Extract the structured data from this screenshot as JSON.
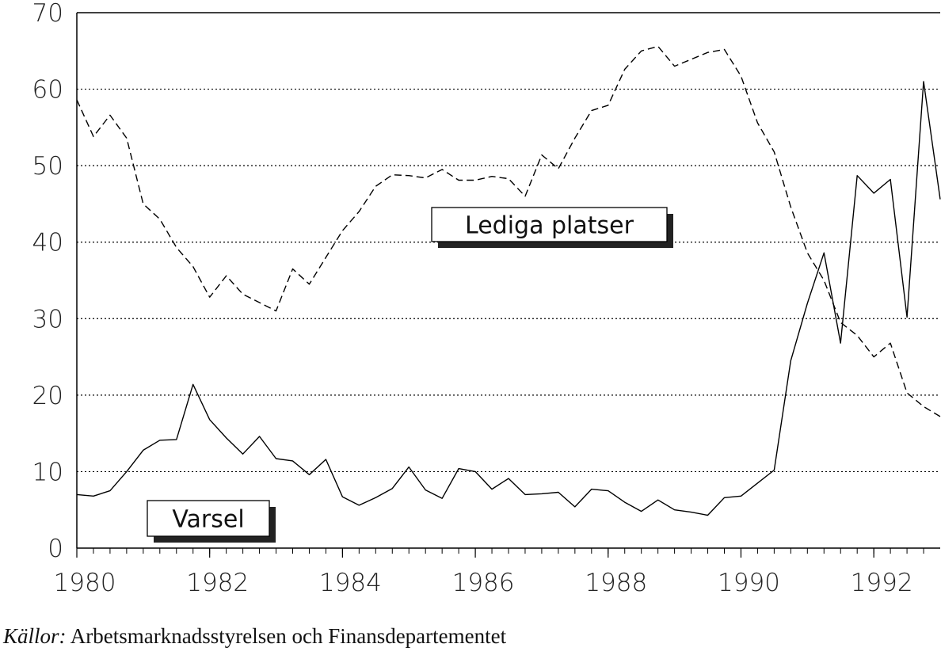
{
  "chart_data": {
    "type": "line",
    "x": [
      1980,
      1980.25,
      1980.5,
      1980.75,
      1981,
      1981.25,
      1981.5,
      1981.75,
      1982,
      1982.25,
      1982.5,
      1982.75,
      1983,
      1983.25,
      1983.5,
      1983.75,
      1984,
      1984.25,
      1984.5,
      1984.75,
      1985,
      1985.25,
      1985.5,
      1985.75,
      1986,
      1986.25,
      1986.5,
      1986.75,
      1987,
      1987.25,
      1987.5,
      1987.75,
      1988,
      1988.25,
      1988.5,
      1988.75,
      1989,
      1989.25,
      1989.5,
      1989.75,
      1990,
      1990.25,
      1990.5,
      1990.75,
      1991,
      1991.25,
      1991.5,
      1991.75,
      1992,
      1992.25,
      1992.5,
      1992.75,
      1993
    ],
    "series": [
      {
        "name": "Lediga platser",
        "color": "#000000",
        "style": "dashed",
        "values": [
          58.6,
          53.8,
          56.6,
          53.6,
          45.0,
          43.0,
          39.3,
          36.8,
          32.8,
          35.6,
          33.2,
          32.1,
          31.0,
          36.5,
          34.5,
          38.0,
          41.5,
          44.0,
          47.3,
          48.8,
          48.7,
          48.4,
          49.5,
          48.1,
          48.1,
          48.6,
          48.3,
          46.0,
          51.4,
          49.6,
          53.6,
          57.2,
          57.9,
          62.6,
          65.0,
          65.6,
          63.0,
          63.9,
          64.8,
          65.2,
          61.7,
          55.6,
          51.8,
          44.6,
          38.6,
          35.0,
          29.5,
          27.8,
          25.0,
          26.8,
          20.3,
          18.5,
          17.2
        ]
      },
      {
        "name": "Varsel",
        "color": "#000000",
        "style": "solid",
        "values": [
          7.0,
          6.8,
          7.5,
          10.0,
          12.8,
          14.1,
          14.2,
          21.4,
          16.8,
          14.4,
          12.3,
          14.6,
          11.7,
          11.4,
          9.6,
          11.6,
          6.7,
          5.6,
          6.6,
          7.8,
          10.6,
          7.6,
          6.5,
          10.4,
          10.0,
          7.7,
          9.1,
          7.0,
          7.1,
          7.3,
          5.4,
          7.7,
          7.5,
          6.0,
          4.8,
          6.3,
          5.0,
          4.7,
          4.3,
          6.6,
          6.8,
          8.5,
          10.2,
          24.5,
          32.0,
          38.6,
          26.8,
          48.7,
          46.4,
          48.2,
          30.2,
          61.0,
          45.6
        ]
      }
    ],
    "xlim": [
      1980,
      1993
    ],
    "xticks": [
      1980,
      1982,
      1984,
      1986,
      1988,
      1990,
      1992
    ],
    "ylim": [
      0,
      70
    ],
    "yticks": [
      0,
      10,
      20,
      30,
      40,
      50,
      60,
      70
    ],
    "grid": true,
    "source_label": "Källor:",
    "source": "Arbetsmarknadsstyrelsen och Finansdepartementet"
  }
}
